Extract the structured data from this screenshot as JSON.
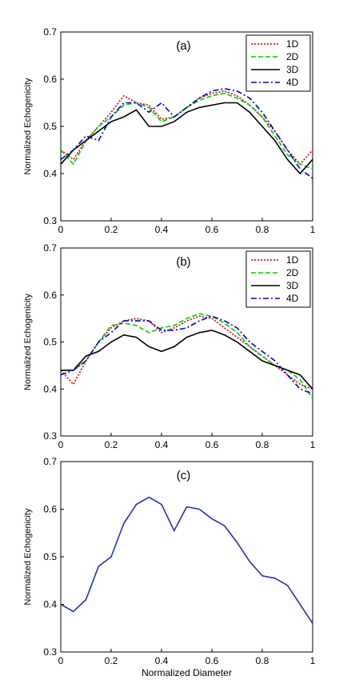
{
  "chart_data": [
    {
      "type": "line",
      "annotation": "(a)",
      "ylabel": "Normalized Echogenicity",
      "x": [
        0,
        0.05,
        0.1,
        0.15,
        0.2,
        0.25,
        0.3,
        0.35,
        0.4,
        0.45,
        0.5,
        0.55,
        0.6,
        0.65,
        0.7,
        0.75,
        0.8,
        0.85,
        0.9,
        0.95,
        1
      ],
      "series": [
        {
          "name": "1D",
          "color": "#cc0000",
          "linestyle": "dotted",
          "values": [
            0.45,
            0.43,
            0.47,
            0.5,
            0.53,
            0.565,
            0.55,
            0.545,
            0.515,
            0.52,
            0.54,
            0.56,
            0.57,
            0.575,
            0.565,
            0.545,
            0.52,
            0.49,
            0.45,
            0.42,
            0.45
          ]
        },
        {
          "name": "2D",
          "color": "#00cc00",
          "linestyle": "dashed",
          "values": [
            0.45,
            0.42,
            0.47,
            0.5,
            0.52,
            0.545,
            0.55,
            0.54,
            0.51,
            0.52,
            0.54,
            0.555,
            0.565,
            0.57,
            0.56,
            0.545,
            0.52,
            0.48,
            0.44,
            0.42,
            0.41
          ]
        },
        {
          "name": "3D",
          "color": "#000000",
          "linestyle": "solid",
          "values": [
            0.42,
            0.45,
            0.47,
            0.49,
            0.51,
            0.52,
            0.535,
            0.5,
            0.5,
            0.51,
            0.53,
            0.54,
            0.545,
            0.55,
            0.55,
            0.53,
            0.5,
            0.47,
            0.43,
            0.4,
            0.43
          ]
        },
        {
          "name": "4D",
          "color": "#0000cc",
          "linestyle": "dashdot",
          "values": [
            0.43,
            0.45,
            0.48,
            0.47,
            0.52,
            0.55,
            0.55,
            0.53,
            0.55,
            0.52,
            0.54,
            0.56,
            0.575,
            0.58,
            0.575,
            0.56,
            0.53,
            0.49,
            0.45,
            0.41,
            0.39
          ]
        }
      ],
      "xlim": [
        0,
        1
      ],
      "xticks": [
        0,
        0.2,
        0.4,
        0.6,
        0.8,
        1
      ],
      "ylim": [
        0.3,
        0.7
      ],
      "yticks": [
        0.3,
        0.4,
        0.5,
        0.6,
        0.7
      ],
      "legend": "upper right"
    },
    {
      "type": "line",
      "annotation": "(b)",
      "ylabel": "Normalized Echogenicity",
      "x": [
        0,
        0.05,
        0.1,
        0.15,
        0.2,
        0.25,
        0.3,
        0.35,
        0.4,
        0.45,
        0.5,
        0.55,
        0.6,
        0.65,
        0.7,
        0.75,
        0.8,
        0.85,
        0.9,
        0.95,
        1
      ],
      "series": [
        {
          "name": "1D",
          "color": "#cc0000",
          "linestyle": "dotted",
          "values": [
            0.44,
            0.41,
            0.46,
            0.5,
            0.53,
            0.545,
            0.55,
            0.545,
            0.52,
            0.53,
            0.545,
            0.555,
            0.55,
            0.53,
            0.51,
            0.49,
            0.47,
            0.45,
            0.43,
            0.41,
            0.4
          ]
        },
        {
          "name": "2D",
          "color": "#00cc00",
          "linestyle": "dashed",
          "values": [
            0.44,
            0.44,
            0.46,
            0.5,
            0.535,
            0.54,
            0.535,
            0.52,
            0.53,
            0.535,
            0.55,
            0.56,
            0.555,
            0.54,
            0.52,
            0.49,
            0.47,
            0.45,
            0.44,
            0.42,
            0.38
          ]
        },
        {
          "name": "3D",
          "color": "#000000",
          "linestyle": "solid",
          "values": [
            0.44,
            0.44,
            0.47,
            0.48,
            0.5,
            0.515,
            0.51,
            0.49,
            0.48,
            0.49,
            0.51,
            0.52,
            0.525,
            0.515,
            0.5,
            0.48,
            0.46,
            0.45,
            0.44,
            0.43,
            0.4
          ]
        },
        {
          "name": "4D",
          "color": "#0000cc",
          "linestyle": "dashdot",
          "values": [
            0.43,
            0.44,
            0.46,
            0.5,
            0.52,
            0.545,
            0.545,
            0.545,
            0.525,
            0.525,
            0.53,
            0.545,
            0.555,
            0.545,
            0.53,
            0.5,
            0.48,
            0.46,
            0.43,
            0.4,
            0.39
          ]
        }
      ],
      "xlim": [
        0,
        1
      ],
      "xticks": [
        0,
        0.2,
        0.4,
        0.6,
        0.8,
        1
      ],
      "ylim": [
        0.3,
        0.7
      ],
      "yticks": [
        0.3,
        0.4,
        0.5,
        0.6,
        0.7
      ],
      "legend": "upper right"
    },
    {
      "type": "line",
      "annotation": "(c)",
      "ylabel": "Normalized Echogenicity",
      "xlabel": "Normalized Diameter",
      "x": [
        0,
        0.05,
        0.1,
        0.15,
        0.2,
        0.25,
        0.3,
        0.35,
        0.4,
        0.45,
        0.5,
        0.55,
        0.6,
        0.65,
        0.7,
        0.75,
        0.8,
        0.85,
        0.9,
        0.95,
        1
      ],
      "color": "#2233bb",
      "values": [
        0.4,
        0.385,
        0.41,
        0.48,
        0.5,
        0.57,
        0.61,
        0.625,
        0.61,
        0.555,
        0.605,
        0.6,
        0.58,
        0.565,
        0.53,
        0.49,
        0.46,
        0.455,
        0.44,
        0.4,
        0.36
      ],
      "xlim": [
        0,
        1
      ],
      "xticks": [
        0,
        0.2,
        0.4,
        0.6,
        0.8,
        1
      ],
      "ylim": [
        0.3,
        0.7
      ],
      "yticks": [
        0.3,
        0.4,
        0.5,
        0.6,
        0.7
      ]
    }
  ]
}
